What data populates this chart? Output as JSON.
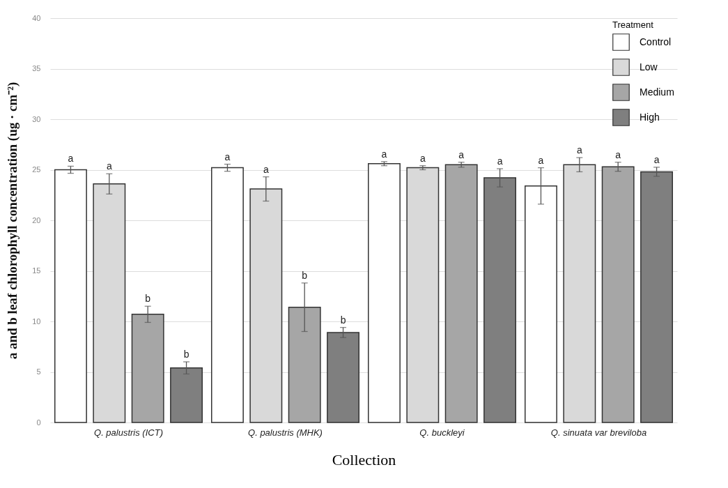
{
  "chart_data": {
    "type": "bar",
    "xlabel": "Collection",
    "ylabel": "a and b leaf chlorophyll concentration (ug · cm⁻²)",
    "legend_title": "Treatment",
    "categories": [
      "Q. palustris (ICT)",
      "Q. palustris (MHK)",
      "Q. buckleyi",
      "Q. sinuata var breviloba"
    ],
    "series": [
      {
        "name": "Control",
        "color": "#ffffff",
        "values": [
          25.0,
          25.2,
          25.6,
          23.4
        ],
        "errors": [
          0.35,
          0.35,
          0.2,
          1.8
        ],
        "value_labels": [
          "a",
          "a",
          "a",
          "a"
        ]
      },
      {
        "name": "Low",
        "color": "#d9d9d9",
        "values": [
          23.6,
          23.1,
          25.2,
          25.5
        ],
        "errors": [
          1.0,
          1.2,
          0.2,
          0.7
        ],
        "value_labels": [
          "a",
          "a",
          "a",
          "a"
        ]
      },
      {
        "name": "Medium",
        "color": "#a6a6a6",
        "values": [
          10.7,
          11.4,
          25.5,
          25.3
        ],
        "errors": [
          0.8,
          2.4,
          0.25,
          0.45
        ],
        "value_labels": [
          "b",
          "b",
          "a",
          "a"
        ]
      },
      {
        "name": "High",
        "color": "#7f7f7f",
        "values": [
          5.4,
          8.9,
          24.2,
          24.8
        ],
        "errors": [
          0.6,
          0.5,
          0.9,
          0.45
        ],
        "value_labels": [
          "b",
          "b",
          "a",
          "a"
        ]
      }
    ],
    "ylim": [
      0,
      40
    ],
    "yticks": [
      0,
      5,
      10,
      15,
      20,
      25,
      30,
      35,
      40
    ],
    "grid": "y",
    "legend": "top right"
  }
}
